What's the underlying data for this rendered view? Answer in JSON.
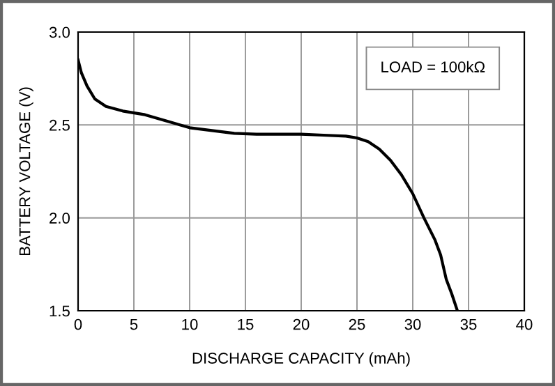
{
  "chart_data": {
    "type": "line",
    "xlabel": "DISCHARGE CAPACITY (mAh)",
    "ylabel": "BATTERY VOLTAGE (V)",
    "annotations": [
      "LOAD = 100kΩ"
    ],
    "series": [
      {
        "color": "#000000",
        "x": [
          0,
          0.3,
          0.8,
          1.5,
          2.5,
          4,
          6,
          8,
          10,
          12,
          14,
          16,
          20,
          22,
          24,
          25,
          26,
          27,
          28,
          29,
          30,
          31,
          32,
          32.5,
          33,
          33.5,
          34
        ],
        "values": [
          2.85,
          2.78,
          2.71,
          2.64,
          2.6,
          2.575,
          2.555,
          2.52,
          2.485,
          2.47,
          2.455,
          2.45,
          2.45,
          2.445,
          2.44,
          2.43,
          2.41,
          2.37,
          2.31,
          2.23,
          2.13,
          2.0,
          1.88,
          1.8,
          1.67,
          1.59,
          1.5
        ]
      }
    ],
    "xlim": [
      0,
      40
    ],
    "xticks": [
      0,
      5,
      10,
      15,
      20,
      25,
      30,
      35,
      40
    ],
    "ylim": [
      1.5,
      3.0
    ],
    "yticks": [
      {
        "value": 1.5,
        "label": "1.5"
      },
      {
        "value": 2.0,
        "label": "2.0"
      },
      {
        "value": 2.5,
        "label": "2.5"
      },
      {
        "value": 3.0,
        "label": "3.0"
      }
    ],
    "grid": true,
    "legend": false,
    "marker": "none",
    "line_style": "solid"
  }
}
